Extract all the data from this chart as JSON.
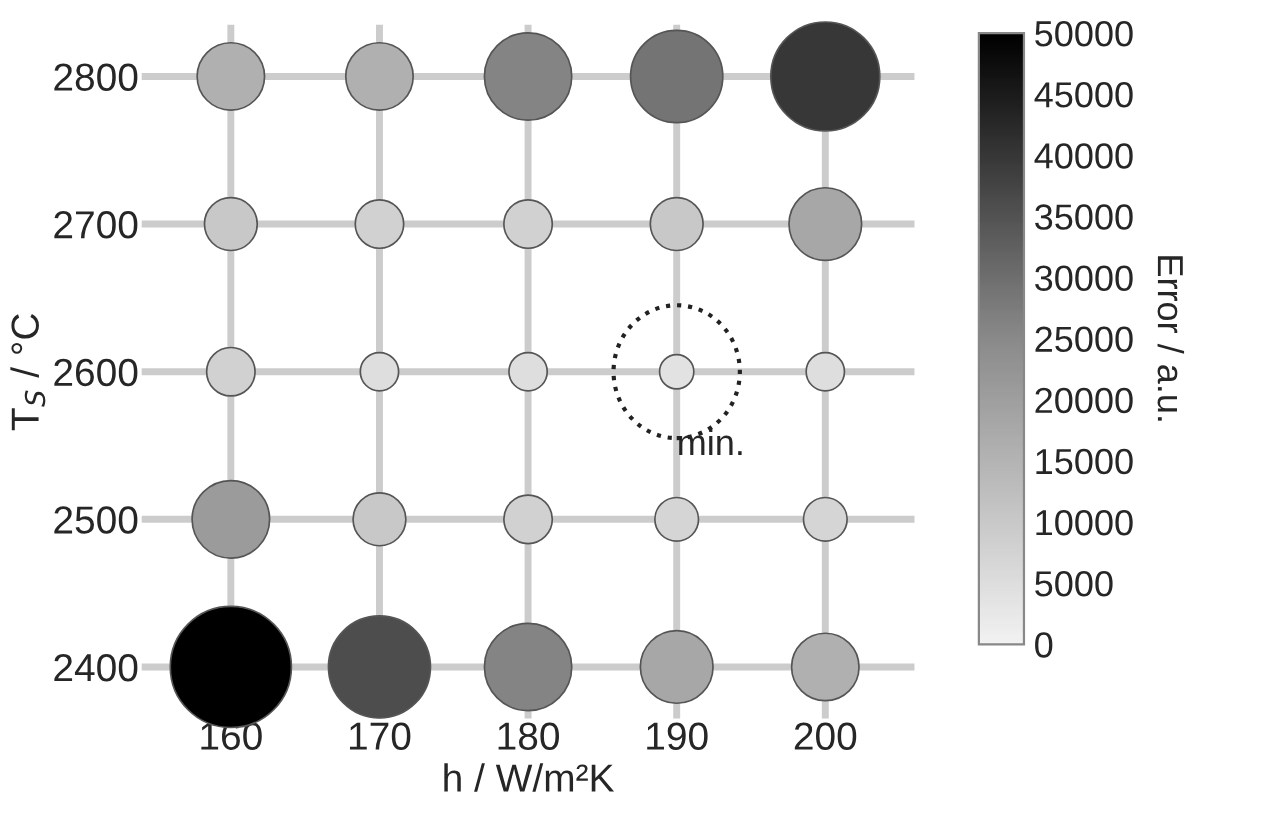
{
  "chart_data": {
    "type": "bubble",
    "xlabel": "h / W/m²K",
    "ylabel": "T$_{S}$ / °C",
    "clabel": "Error / a.u.",
    "x": [
      160,
      170,
      180,
      190,
      200,
      160,
      170,
      180,
      190,
      200,
      160,
      170,
      180,
      190,
      200,
      160,
      170,
      180,
      190,
      200,
      160,
      170,
      180,
      190,
      200
    ],
    "values": [
      2800,
      2800,
      2800,
      2800,
      2800,
      2700,
      2700,
      2700,
      2700,
      2700,
      2600,
      2600,
      2600,
      2600,
      2600,
      2500,
      2500,
      2500,
      2500,
      2500,
      2400,
      2400,
      2400,
      2400,
      2400
    ],
    "sizes": [
      0.31,
      0.31,
      0.52,
      0.58,
      0.81,
      0.19,
      0.16,
      0.16,
      0.19,
      0.36,
      0.16,
      0.1,
      0.1,
      0.08,
      0.1,
      0.41,
      0.19,
      0.16,
      0.13,
      0.13,
      1,
      0.71,
      0.52,
      0.36,
      0.31
    ],
    "cvalues": [
      16000,
      16000,
      26000,
      29000,
      40000,
      10000,
      8000,
      8000,
      10000,
      18000,
      8000,
      5000,
      5000,
      4000,
      5000,
      21000,
      10000,
      8000,
      7000,
      7000,
      50000,
      36000,
      26000,
      18000,
      16000
    ],
    "clim": [
      0,
      50000
    ],
    "cticks": [
      0,
      5000,
      10000,
      15000,
      20000,
      25000,
      30000,
      35000,
      40000,
      45000,
      50000
    ],
    "xlim": [
      154,
      206
    ],
    "ylim": [
      2365,
      2835
    ],
    "xticks": [
      160,
      170,
      180,
      190,
      200
    ],
    "yticks": [
      2400,
      2500,
      2600,
      2700,
      2800
    ],
    "grid": true,
    "annotations": [
      {
        "text": "min.",
        "x": 190,
        "y": 2600
      }
    ]
  }
}
